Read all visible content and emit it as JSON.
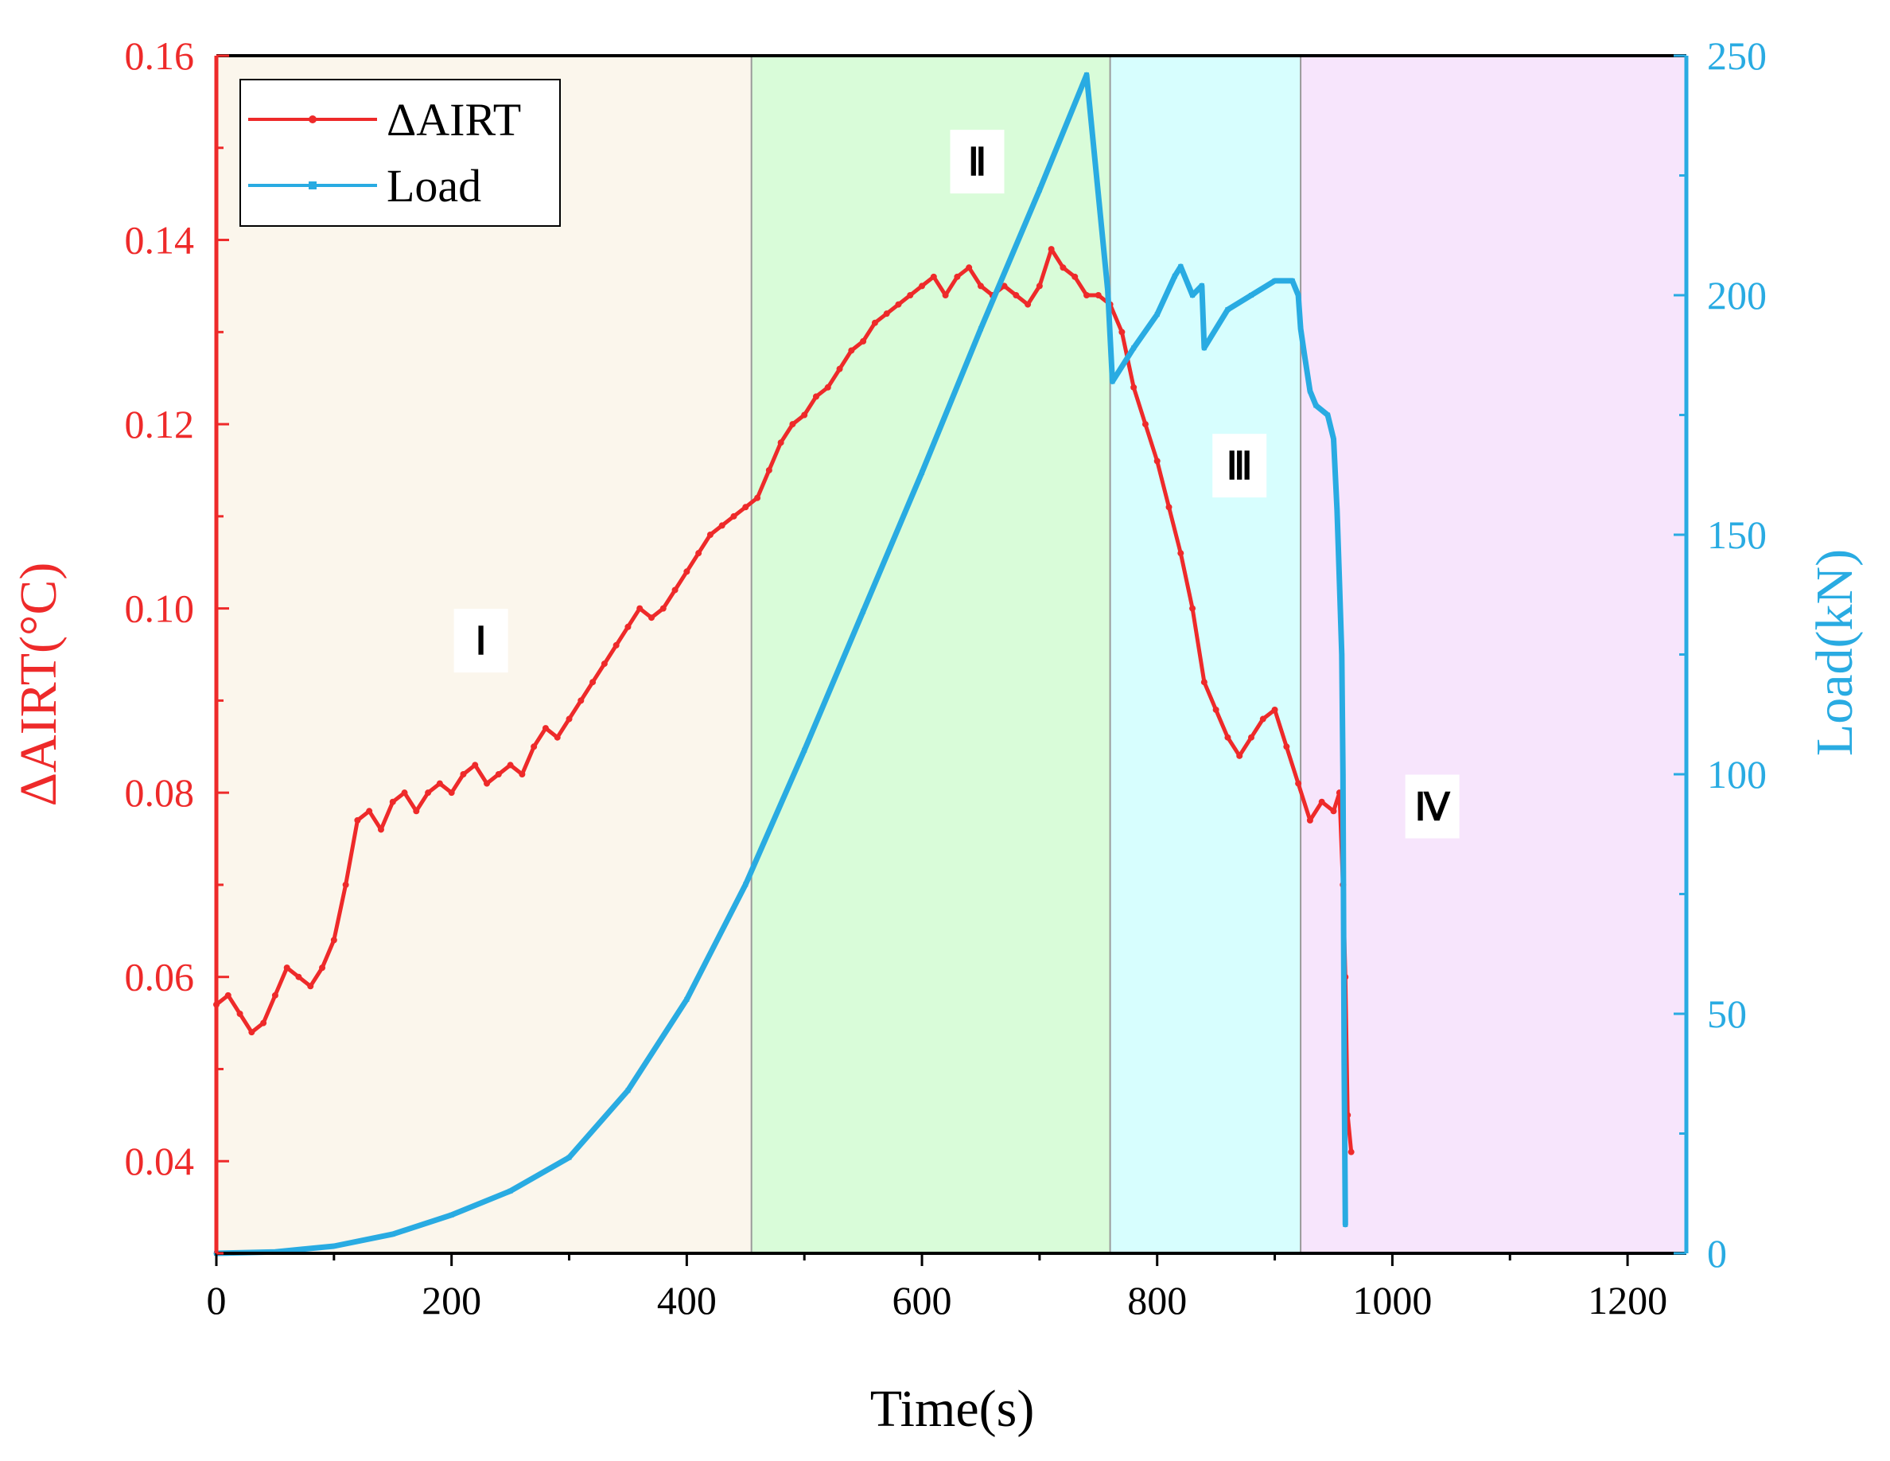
{
  "chart_data": {
    "type": "line",
    "title": "",
    "xlabel": "Time(s)",
    "ylabel_left": "ΔAIRT(°C)",
    "ylabel_right": "Load(kN)",
    "xlim": [
      0,
      1250
    ],
    "ylim_left": [
      0.03,
      0.16
    ],
    "ylim_right": [
      0,
      250
    ],
    "x_ticks": [
      "0",
      "200",
      "400",
      "600",
      "800",
      "1000",
      "1200"
    ],
    "x_tick_values": [
      0,
      200,
      400,
      600,
      800,
      1000,
      1200
    ],
    "y_left_ticks": [
      "0.04",
      "0.06",
      "0.08",
      "0.10",
      "0.12",
      "0.14",
      "0.16"
    ],
    "y_left_tick_values": [
      0.04,
      0.06,
      0.08,
      0.1,
      0.12,
      0.14,
      0.16
    ],
    "y_right_ticks": [
      "0",
      "50",
      "100",
      "150",
      "200",
      "250"
    ],
    "y_right_tick_values": [
      0,
      50,
      100,
      150,
      200,
      250
    ],
    "legend": {
      "placement": "top-left",
      "entries": [
        "ΔAIRT",
        "Load"
      ]
    },
    "stages": [
      {
        "label": "Ⅰ",
        "x_start": 0,
        "x_end": 455,
        "label_x": 225,
        "label_y": 0.0965,
        "color": "#fbf6ec"
      },
      {
        "label": "Ⅱ",
        "x_start": 455,
        "x_end": 760,
        "label_x": 647,
        "label_y": 0.1485,
        "color": "#d9fcd9"
      },
      {
        "label": "Ⅲ",
        "x_start": 760,
        "x_end": 922,
        "label_x": 870,
        "label_y": 0.1155,
        "color": "#d7fefe"
      },
      {
        "label": "Ⅳ",
        "x_start": 922,
        "x_end": 1250,
        "label_x": 1034,
        "label_y": 0.0785,
        "color": "#f7e5fc"
      }
    ],
    "series": [
      {
        "name": "ΔAIRT",
        "axis": "left",
        "color": "#ee2a2a",
        "x": [
          0,
          10,
          20,
          30,
          40,
          50,
          60,
          70,
          80,
          90,
          100,
          110,
          120,
          130,
          140,
          150,
          160,
          170,
          180,
          190,
          200,
          210,
          220,
          230,
          240,
          250,
          260,
          270,
          280,
          290,
          300,
          310,
          320,
          330,
          340,
          350,
          360,
          370,
          380,
          390,
          400,
          410,
          420,
          430,
          440,
          450,
          460,
          470,
          480,
          490,
          500,
          510,
          520,
          530,
          540,
          550,
          560,
          570,
          580,
          590,
          600,
          610,
          620,
          630,
          640,
          650,
          660,
          670,
          680,
          690,
          700,
          710,
          720,
          730,
          740,
          750,
          760,
          770,
          780,
          790,
          800,
          810,
          820,
          830,
          840,
          850,
          860,
          870,
          880,
          890,
          900,
          910,
          920,
          930,
          940,
          950,
          955,
          958,
          960,
          962,
          965
        ],
        "y": [
          0.057,
          0.058,
          0.056,
          0.054,
          0.055,
          0.058,
          0.061,
          0.06,
          0.059,
          0.061,
          0.064,
          0.07,
          0.077,
          0.078,
          0.076,
          0.079,
          0.08,
          0.078,
          0.08,
          0.081,
          0.08,
          0.082,
          0.083,
          0.081,
          0.082,
          0.083,
          0.082,
          0.085,
          0.087,
          0.086,
          0.088,
          0.09,
          0.092,
          0.094,
          0.096,
          0.098,
          0.1,
          0.099,
          0.1,
          0.102,
          0.104,
          0.106,
          0.108,
          0.109,
          0.11,
          0.111,
          0.112,
          0.115,
          0.118,
          0.12,
          0.121,
          0.123,
          0.124,
          0.126,
          0.128,
          0.129,
          0.131,
          0.132,
          0.133,
          0.134,
          0.135,
          0.136,
          0.134,
          0.136,
          0.137,
          0.135,
          0.134,
          0.135,
          0.134,
          0.133,
          0.135,
          0.139,
          0.137,
          0.136,
          0.134,
          0.134,
          0.133,
          0.13,
          0.124,
          0.12,
          0.116,
          0.111,
          0.106,
          0.1,
          0.092,
          0.089,
          0.086,
          0.084,
          0.086,
          0.088,
          0.089,
          0.085,
          0.081,
          0.077,
          0.079,
          0.078,
          0.08,
          0.07,
          0.06,
          0.045,
          0.041
        ]
      },
      {
        "name": "Load",
        "axis": "right",
        "color": "#29abe2",
        "x": [
          0,
          50,
          100,
          150,
          200,
          250,
          300,
          350,
          400,
          450,
          500,
          550,
          600,
          650,
          700,
          740,
          758,
          762,
          780,
          800,
          815,
          820,
          830,
          838,
          840,
          860,
          880,
          900,
          915,
          920,
          922,
          925,
          930,
          935,
          945,
          950,
          953,
          955,
          957,
          958,
          959,
          960
        ],
        "y": [
          0,
          0.3,
          1.5,
          4,
          8,
          13,
          20,
          34,
          53,
          77,
          105,
          134,
          163,
          193,
          222,
          246,
          201,
          182,
          189,
          196,
          204,
          206,
          200,
          202,
          189,
          197,
          200,
          203,
          203,
          200,
          193,
          188,
          180,
          177,
          175,
          170,
          155,
          140,
          125,
          100,
          40,
          6
        ]
      }
    ]
  }
}
